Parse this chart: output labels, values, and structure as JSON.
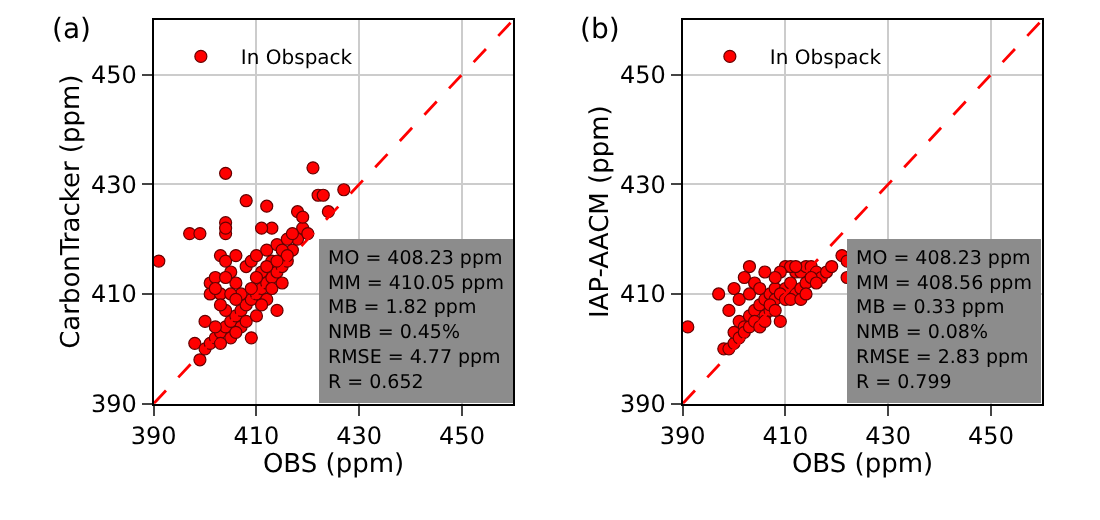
{
  "chart_data": [
    {
      "type": "scatter",
      "title": "(a)",
      "xlabel": "OBS (ppm)",
      "ylabel": "CarbonTracker (ppm)",
      "xlim": [
        390,
        460
      ],
      "ylim": [
        390,
        460
      ],
      "xticks": [
        390,
        410,
        430,
        450
      ],
      "yticks": [
        390,
        410,
        430,
        450
      ],
      "grid": true,
      "legend": "top left",
      "marker": "circle",
      "annotations": [
        "MO = 408.23 ppm\nMM = 410.05 ppm\nMB = 1.82 ppm\nNMB = 0.45%\nRMSE = 4.77 ppm\nR = 0.652"
      ],
      "series": [
        {
          "name": "In Obspack",
          "color": "#ff0000",
          "x": [
            391,
            397,
            399,
            404,
            408,
            421,
            422,
            423,
            427,
            424,
            412,
            413,
            411,
            404,
            404,
            404,
            398,
            399,
            400,
            401,
            402,
            403,
            404,
            405,
            406,
            407,
            408,
            409,
            410,
            411,
            412,
            413,
            414,
            415,
            416,
            417,
            418,
            419,
            420,
            418,
            419,
            409,
            414,
            412,
            400,
            401,
            402,
            403,
            404,
            405,
            406,
            407,
            408,
            409,
            410,
            401,
            403,
            405,
            406,
            407,
            405,
            403,
            402,
            404,
            406,
            408,
            410,
            411,
            412,
            413,
            414,
            415,
            416,
            417,
            412,
            411,
            410,
            409,
            413,
            415,
            416,
            414,
            403,
            402,
            404,
            406
          ],
          "values": [
            416,
            421,
            421,
            432,
            427,
            433,
            428,
            428,
            429,
            425,
            426,
            422,
            422,
            423,
            421,
            422,
            401,
            398,
            400,
            401,
            402,
            403,
            404,
            405,
            406,
            407,
            408,
            409,
            410,
            411,
            412,
            413,
            414,
            415,
            416,
            418,
            420,
            422,
            421,
            425,
            424,
            402,
            407,
            409,
            405,
            412,
            413,
            417,
            416,
            414,
            412,
            410,
            415,
            416,
            417,
            410,
            410,
            410,
            409,
            404,
            402,
            401,
            404,
            407,
            403,
            405,
            406,
            414,
            418,
            416,
            419,
            418,
            420,
            421,
            415,
            408,
            413,
            411,
            411,
            412,
            417,
            416,
            408,
            411,
            413,
            417
          ]
        },
        {
          "type": "line",
          "color": "#ff0000",
          "line_style": "dashed",
          "marker": "none",
          "x": [
            390,
            460
          ],
          "values": [
            390,
            460
          ]
        }
      ]
    },
    {
      "type": "scatter",
      "title": "(b)",
      "xlabel": "OBS (ppm)",
      "ylabel": "IAP-AACM (ppm)",
      "xlim": [
        390,
        460
      ],
      "ylim": [
        390,
        460
      ],
      "xticks": [
        390,
        410,
        430,
        450
      ],
      "yticks": [
        390,
        410,
        430,
        450
      ],
      "grid": true,
      "legend": "top left",
      "marker": "circle",
      "annotations": [
        "MO = 408.23 ppm\nMM = 408.56 ppm\nMB = 0.33 ppm\nNMB = 0.08%\nRMSE = 2.83 ppm\nR = 0.799"
      ],
      "series": [
        {
          "name": "In Obspack",
          "color": "#ff0000",
          "x": [
            391,
            397,
            398,
            399,
            400,
            399,
            401,
            402,
            403,
            404,
            405,
            406,
            407,
            408,
            412,
            413,
            414,
            415,
            416,
            417,
            418,
            419,
            421,
            422,
            422,
            409,
            403,
            406,
            402,
            404,
            400,
            401,
            403,
            405,
            406,
            407,
            408,
            410,
            411,
            412,
            413,
            414,
            415,
            410,
            411,
            412,
            400,
            401,
            402,
            403,
            404,
            405,
            406,
            407,
            408,
            409,
            410,
            411,
            413,
            414,
            416,
            409,
            408
          ],
          "values": [
            404,
            410,
            400,
            400,
            401,
            407,
            405,
            404,
            406,
            407,
            408,
            409,
            410,
            411,
            414,
            414,
            415,
            415,
            414,
            413,
            414,
            415,
            417,
            416,
            413,
            405,
            415,
            414,
            413,
            412,
            411,
            409,
            410,
            411,
            406,
            407,
            409,
            411,
            412,
            410,
            411,
            412,
            413,
            415,
            415,
            415,
            403,
            402,
            403,
            404,
            405,
            404,
            405,
            408,
            407,
            410,
            409,
            409,
            409,
            410,
            412,
            414,
            413
          ]
        },
        {
          "type": "line",
          "color": "#ff0000",
          "line_style": "dashed",
          "marker": "none",
          "x": [
            390,
            460
          ],
          "values": [
            390,
            460
          ]
        }
      ]
    }
  ]
}
